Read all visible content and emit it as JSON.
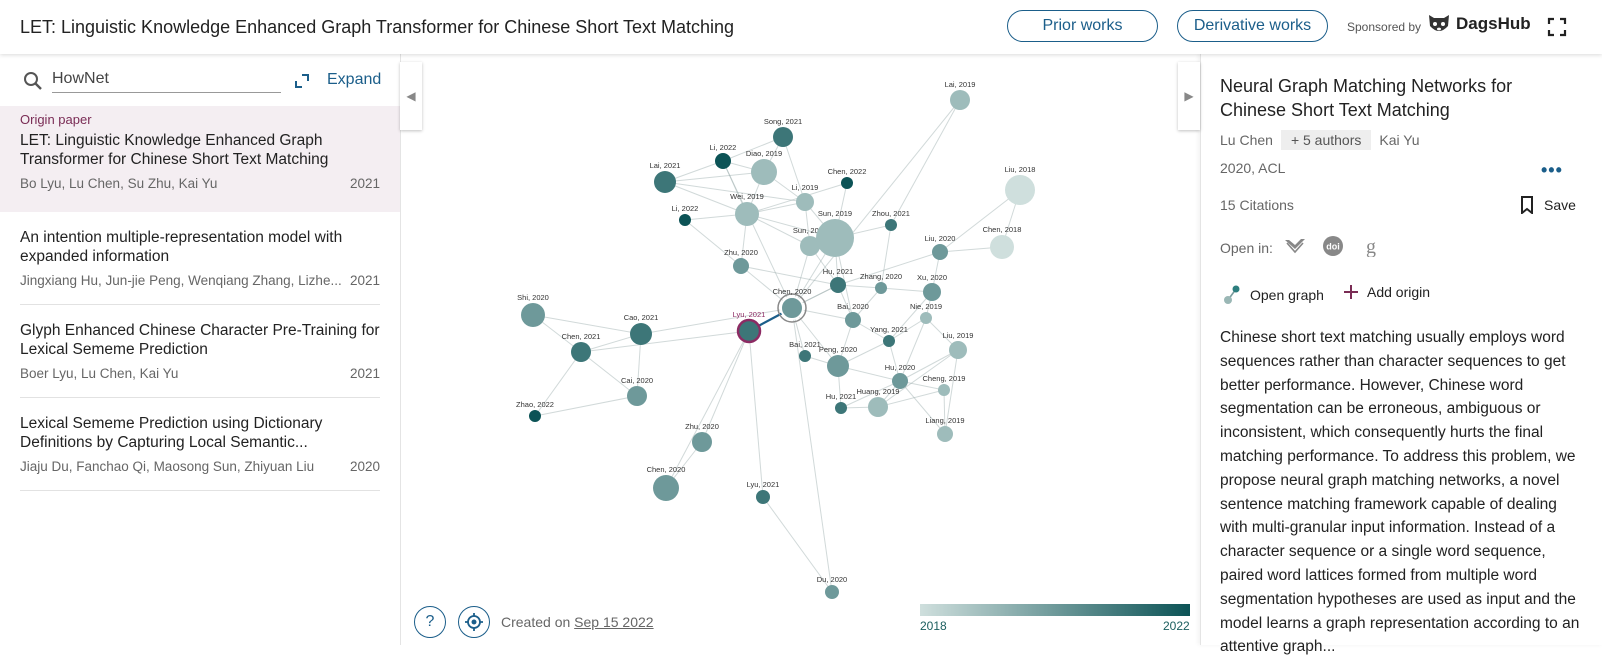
{
  "header": {
    "title": "LET: Linguistic Knowledge Enhanced Graph Transformer for Chinese Short Text Matching",
    "prior_works": "Prior works",
    "derivative_works": "Derivative works",
    "sponsored_by": "Sponsored by",
    "sponsor_name": "DagsHub"
  },
  "sidebar": {
    "search_value": "HowNet",
    "expand_label": "Expand",
    "origin_tag": "Origin paper",
    "papers": [
      {
        "title": "LET: Linguistic Knowledge Enhanced Graph Transformer for Chinese Short Text Matching",
        "authors": "Bo Lyu, Lu Chen, Su Zhu, Kai Yu",
        "year": "2021"
      },
      {
        "title": "An intention multiple-representation model with expanded information",
        "authors": "Jingxiang Hu, Jun-jie Peng, Wenqiang Zhang, Lizhe...",
        "year": "2021"
      },
      {
        "title": "Glyph Enhanced Chinese Character Pre-Training for Lexical Sememe Prediction",
        "authors": "Boer Lyu, Lu Chen, Kai Yu",
        "year": "2021"
      },
      {
        "title": "Lexical Sememe Prediction using Dictionary Definitions by Capturing Local Semantic...",
        "authors": "Jiaju Du, Fanchao Qi, Maosong Sun, Zhiyuan Liu",
        "year": "2020"
      }
    ]
  },
  "graph": {
    "nodes": [
      {
        "label": "Lai, 2019",
        "year": 2019
      },
      {
        "label": "Song, 2021",
        "year": 2021
      },
      {
        "label": "Li, 2022",
        "year": 2022
      },
      {
        "label": "Diao, 2019",
        "year": 2019
      },
      {
        "label": "Lai, 2021",
        "year": 2021
      },
      {
        "label": "Chen, 2022",
        "year": 2022
      },
      {
        "label": "Li, 2019",
        "year": 2019
      },
      {
        "label": "Liu, 2018",
        "year": 2018
      },
      {
        "label": "Li, 2022",
        "year": 2022
      },
      {
        "label": "Wei, 2019",
        "year": 2019
      },
      {
        "label": "Zhou, 2021",
        "year": 2021
      },
      {
        "label": "Sun, 2019",
        "year": 2019
      },
      {
        "label": "Sun, 2019",
        "year": 2019
      },
      {
        "label": "Chen, 2018",
        "year": 2018
      },
      {
        "label": "Liu, 2020",
        "year": 2020
      },
      {
        "label": "Zhu, 2020",
        "year": 2020
      },
      {
        "label": "Hu, 2021",
        "year": 2021
      },
      {
        "label": "Zhang, 2020",
        "year": 2020
      },
      {
        "label": "Xu, 2020",
        "year": 2020
      },
      {
        "label": "Shi, 2020",
        "year": 2020
      },
      {
        "label": "Chen, 2020",
        "year": 2020
      },
      {
        "label": "Bai, 2020",
        "year": 2020
      },
      {
        "label": "Nie, 2019",
        "year": 2019
      },
      {
        "label": "Lyu, 2021",
        "year": 2021
      },
      {
        "label": "Cao, 2021",
        "year": 2021
      },
      {
        "label": "Yang, 2021",
        "year": 2021
      },
      {
        "label": "Chen, 2021",
        "year": 2021
      },
      {
        "label": "Liu, 2019",
        "year": 2019
      },
      {
        "label": "Bai, 2021",
        "year": 2021
      },
      {
        "label": "Peng, 2020",
        "year": 2020
      },
      {
        "label": "Hu, 2020",
        "year": 2020
      },
      {
        "label": "Cai, 2020",
        "year": 2020
      },
      {
        "label": "Cheng, 2019",
        "year": 2019
      },
      {
        "label": "Hu, 2021",
        "year": 2021
      },
      {
        "label": "Huang, 2019",
        "year": 2019
      },
      {
        "label": "Zhao, 2022",
        "year": 2022
      },
      {
        "label": "Liang, 2019",
        "year": 2019
      },
      {
        "label": "Zhu, 2020",
        "year": 2020
      },
      {
        "label": "Chen, 2020",
        "year": 2020
      },
      {
        "label": "Lyu, 2021",
        "year": 2021
      },
      {
        "label": "Du, 2020",
        "year": 2020
      }
    ],
    "colors": {
      "old": "#cfdfdd",
      "new": "#0c5356",
      "origin_ring": "#8c2b63",
      "selected_link": "#1b5e8a"
    }
  },
  "footer": {
    "created_prefix": "Created on",
    "created_date": "Sep 15 2022",
    "legend_min": "2018",
    "legend_max": "2022",
    "help_label": "?"
  },
  "detail": {
    "title": "Neural Graph Matching Networks for Chinese Short Text Matching",
    "author_first": "Lu Chen",
    "author_more": "+ 5 authors",
    "author_last": "Kai Yu",
    "year_venue": "2020, ACL",
    "citations": "15 Citations",
    "save_label": "Save",
    "open_in_label": "Open in:",
    "open_graph_label": "Open graph",
    "add_origin_label": "Add origin",
    "abstract": "Chinese short text matching usually employs word sequences rather than character sequences to get better performance. However, Chinese word segmentation can be erroneous, ambiguous or inconsistent, which consequently hurts the final matching performance. To address this problem, we propose neural graph matching networks, a novel sentence matching framework capable of dealing with multi-granular input information. Instead of a character sequence or a single word sequence, paired word lattices formed from multiple word segmentation hypotheses are used as input and the model learns a graph representation according to an attentive graph..."
  }
}
